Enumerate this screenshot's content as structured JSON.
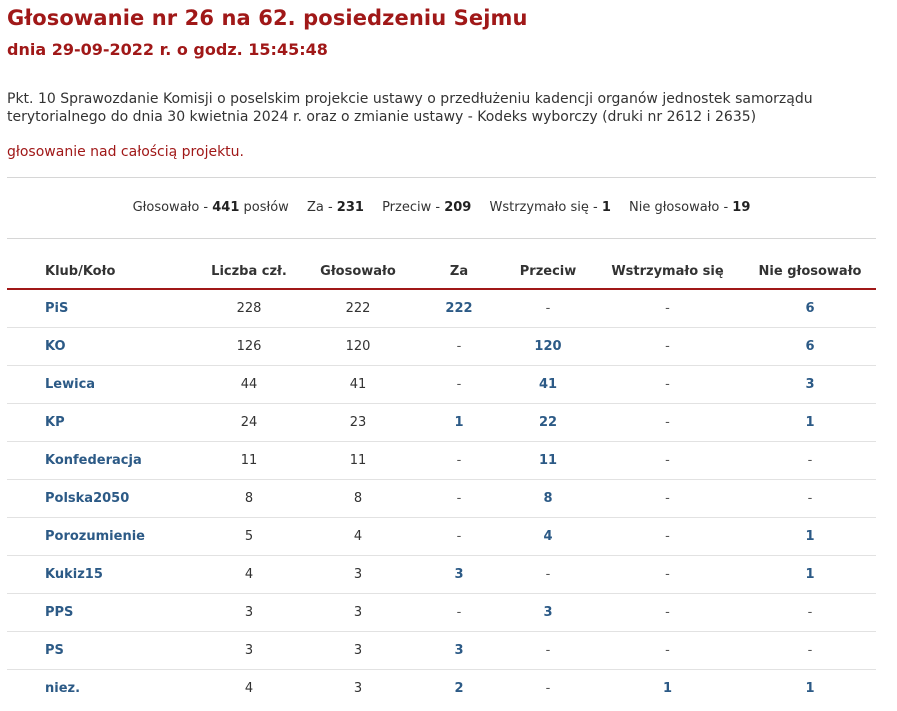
{
  "title": "Głosowanie nr 26 na 62. posiedzeniu Sejmu",
  "date_line": "dnia 29-09-2022 r. o godz. 15:45:48",
  "description": "Pkt. 10 Sprawozdanie Komisji o poselskim projekcie ustawy o przedłużeniu kadencji organów jednostek samorządu terytorialnego do dnia 30 kwietnia 2024 r. oraz o zmianie ustawy - Kodeks wyborczy (druki nr 2612 i 2635)",
  "subtitle": "głosowanie nad całością projektu.",
  "summary": {
    "voted_label": "Głosowało - ",
    "voted_value": "441",
    "voted_suffix": " posłów",
    "for_label": "Za - ",
    "for_value": "231",
    "against_label": "Przeciw - ",
    "against_value": "209",
    "abstain_label": "Wstrzymało się - ",
    "abstain_value": "1",
    "notvoted_label": "Nie głosowało - ",
    "notvoted_value": "19"
  },
  "table": {
    "headers": [
      "Klub/Koło",
      "Liczba czł.",
      "Głosowało",
      "Za",
      "Przeciw",
      "Wstrzymało się",
      "Nie głosowało"
    ],
    "rows": [
      {
        "club": "PiS",
        "members": "228",
        "voted": "222",
        "for": "222",
        "against": "-",
        "abstain": "-",
        "notvoted": "6"
      },
      {
        "club": "KO",
        "members": "126",
        "voted": "120",
        "for": "-",
        "against": "120",
        "abstain": "-",
        "notvoted": "6"
      },
      {
        "club": "Lewica",
        "members": "44",
        "voted": "41",
        "for": "-",
        "against": "41",
        "abstain": "-",
        "notvoted": "3"
      },
      {
        "club": "KP",
        "members": "24",
        "voted": "23",
        "for": "1",
        "against": "22",
        "abstain": "-",
        "notvoted": "1"
      },
      {
        "club": "Konfederacja",
        "members": "11",
        "voted": "11",
        "for": "-",
        "against": "11",
        "abstain": "-",
        "notvoted": "-"
      },
      {
        "club": "Polska2050",
        "members": "8",
        "voted": "8",
        "for": "-",
        "against": "8",
        "abstain": "-",
        "notvoted": "-"
      },
      {
        "club": "Porozumienie",
        "members": "5",
        "voted": "4",
        "for": "-",
        "against": "4",
        "abstain": "-",
        "notvoted": "1"
      },
      {
        "club": "Kukiz15",
        "members": "4",
        "voted": "3",
        "for": "3",
        "against": "-",
        "abstain": "-",
        "notvoted": "1"
      },
      {
        "club": "PPS",
        "members": "3",
        "voted": "3",
        "for": "-",
        "against": "3",
        "abstain": "-",
        "notvoted": "-"
      },
      {
        "club": "PS",
        "members": "3",
        "voted": "3",
        "for": "3",
        "against": "-",
        "abstain": "-",
        "notvoted": "-"
      },
      {
        "club": "niez.",
        "members": "4",
        "voted": "3",
        "for": "2",
        "against": "-",
        "abstain": "1",
        "notvoted": "1"
      }
    ]
  },
  "colors": {
    "title_red": "#a01818",
    "link_blue": "#2c5a86"
  }
}
